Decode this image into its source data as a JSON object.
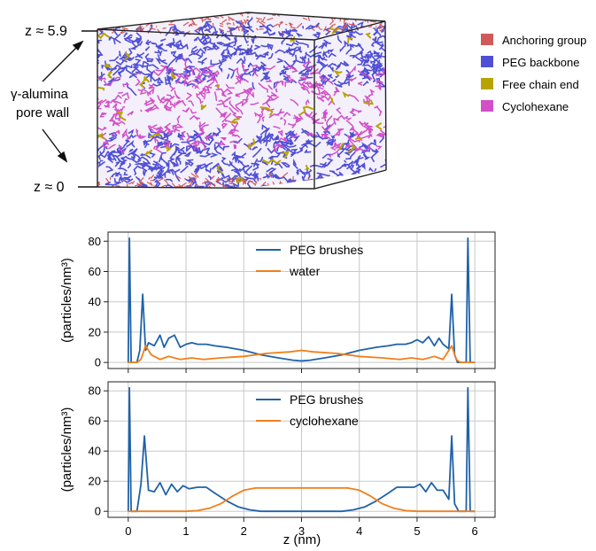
{
  "figure": {
    "top_label": "z ≈ 5.9",
    "bottom_label": "z ≈ 0",
    "wall_label_line1": "γ-alumina",
    "wall_label_line2": "pore wall",
    "legend": [
      {
        "label": "Anchoring group",
        "color": "#d05a5a"
      },
      {
        "label": "PEG backbone",
        "color": "#4f4fd6"
      },
      {
        "label": "Free chain end",
        "color": "#b8a400"
      },
      {
        "label": "Cyclohexane",
        "color": "#d24fc8"
      }
    ]
  },
  "chart_data": [
    {
      "type": "line",
      "xlim": [
        -0.35,
        6.35
      ],
      "ylim": [
        -4,
        86
      ],
      "xticks": [
        0,
        1,
        2,
        3,
        4,
        5,
        6
      ],
      "yticks": [
        0,
        20,
        40,
        60,
        80
      ],
      "ylabel": "(particles/nm³)",
      "xlabel": "",
      "grid": true,
      "legend_position": "top-center",
      "series": [
        {
          "name": "PEG brushes",
          "color": "#1f62a8",
          "x": [
            0,
            0.02,
            0.05,
            0.07,
            0.15,
            0.2,
            0.25,
            0.3,
            0.35,
            0.45,
            0.55,
            0.62,
            0.7,
            0.8,
            0.9,
            1.0,
            1.1,
            1.2,
            1.35,
            1.5,
            1.7,
            2.0,
            2.3,
            2.6,
            2.85,
            3.0,
            3.15,
            3.4,
            3.7,
            4.0,
            4.3,
            4.5,
            4.65,
            4.8,
            4.9,
            5.0,
            5.1,
            5.2,
            5.3,
            5.38,
            5.45,
            5.55,
            5.6,
            5.65,
            5.7,
            5.8,
            5.85,
            5.88,
            5.92,
            5.95,
            6.0
          ],
          "values": [
            0,
            82,
            0,
            0,
            0,
            8,
            45,
            8,
            13,
            11,
            18,
            10,
            16,
            18,
            10,
            12,
            13,
            12,
            12,
            11,
            10,
            8,
            5,
            3,
            1.5,
            1,
            1.5,
            3,
            5,
            8,
            10,
            11,
            12,
            12,
            13,
            15,
            13,
            17,
            11,
            16,
            12,
            9,
            45,
            5,
            0,
            0,
            0,
            82,
            0,
            0,
            0
          ]
        },
        {
          "name": "water",
          "color": "#f07f1a",
          "x": [
            0,
            0.15,
            0.22,
            0.3,
            0.4,
            0.55,
            0.7,
            0.9,
            1.1,
            1.3,
            1.6,
            2.0,
            2.4,
            2.8,
            3.0,
            3.2,
            3.6,
            4.0,
            4.4,
            4.7,
            4.9,
            5.1,
            5.3,
            5.45,
            5.6,
            5.68,
            5.75,
            5.85,
            6.0
          ],
          "values": [
            0,
            0,
            2,
            11,
            5,
            2,
            4,
            2,
            3,
            2,
            3,
            4,
            6,
            7,
            8,
            7,
            6,
            4,
            3,
            2,
            3,
            2,
            4,
            2,
            11,
            2,
            0,
            0,
            0
          ]
        }
      ]
    },
    {
      "type": "line",
      "xlim": [
        -0.35,
        6.35
      ],
      "ylim": [
        -4,
        86
      ],
      "xticks": [
        0,
        1,
        2,
        3,
        4,
        5,
        6
      ],
      "yticks": [
        0,
        20,
        40,
        60,
        80
      ],
      "ylabel": "(particles/nm³)",
      "xlabel": "z (nm)",
      "grid": true,
      "legend_position": "top-center",
      "series": [
        {
          "name": "PEG brushes",
          "color": "#1f62a8",
          "x": [
            0,
            0.02,
            0.05,
            0.07,
            0.15,
            0.22,
            0.28,
            0.35,
            0.45,
            0.55,
            0.65,
            0.75,
            0.85,
            0.95,
            1.05,
            1.2,
            1.35,
            1.5,
            1.7,
            1.9,
            2.1,
            2.3,
            2.5,
            3.5,
            3.7,
            3.9,
            4.1,
            4.3,
            4.5,
            4.65,
            4.8,
            4.95,
            5.05,
            5.15,
            5.25,
            5.35,
            5.45,
            5.55,
            5.6,
            5.65,
            5.72,
            5.85,
            5.88,
            5.92,
            5.95,
            6.0
          ],
          "values": [
            0,
            82,
            0,
            0,
            0,
            18,
            50,
            14,
            13,
            19,
            11,
            18,
            13,
            17,
            15,
            16,
            16,
            12,
            7,
            3,
            1,
            0,
            0,
            0,
            0,
            1,
            3,
            7,
            12,
            16,
            16,
            16,
            18,
            13,
            19,
            14,
            14,
            8,
            50,
            5,
            0,
            0,
            82,
            0,
            0,
            0
          ]
        },
        {
          "name": "cyclohexane",
          "color": "#f07f1a",
          "x": [
            0,
            1.0,
            1.2,
            1.4,
            1.6,
            1.8,
            2.0,
            2.2,
            2.5,
            3.0,
            3.5,
            3.8,
            4.0,
            4.2,
            4.4,
            4.6,
            4.8,
            5.0,
            6.0
          ],
          "values": [
            0,
            0,
            0.5,
            2,
            5,
            10,
            14,
            15.5,
            15.5,
            15.5,
            15.5,
            15.5,
            14,
            10,
            5,
            2,
            0.5,
            0,
            0
          ]
        }
      ]
    }
  ]
}
